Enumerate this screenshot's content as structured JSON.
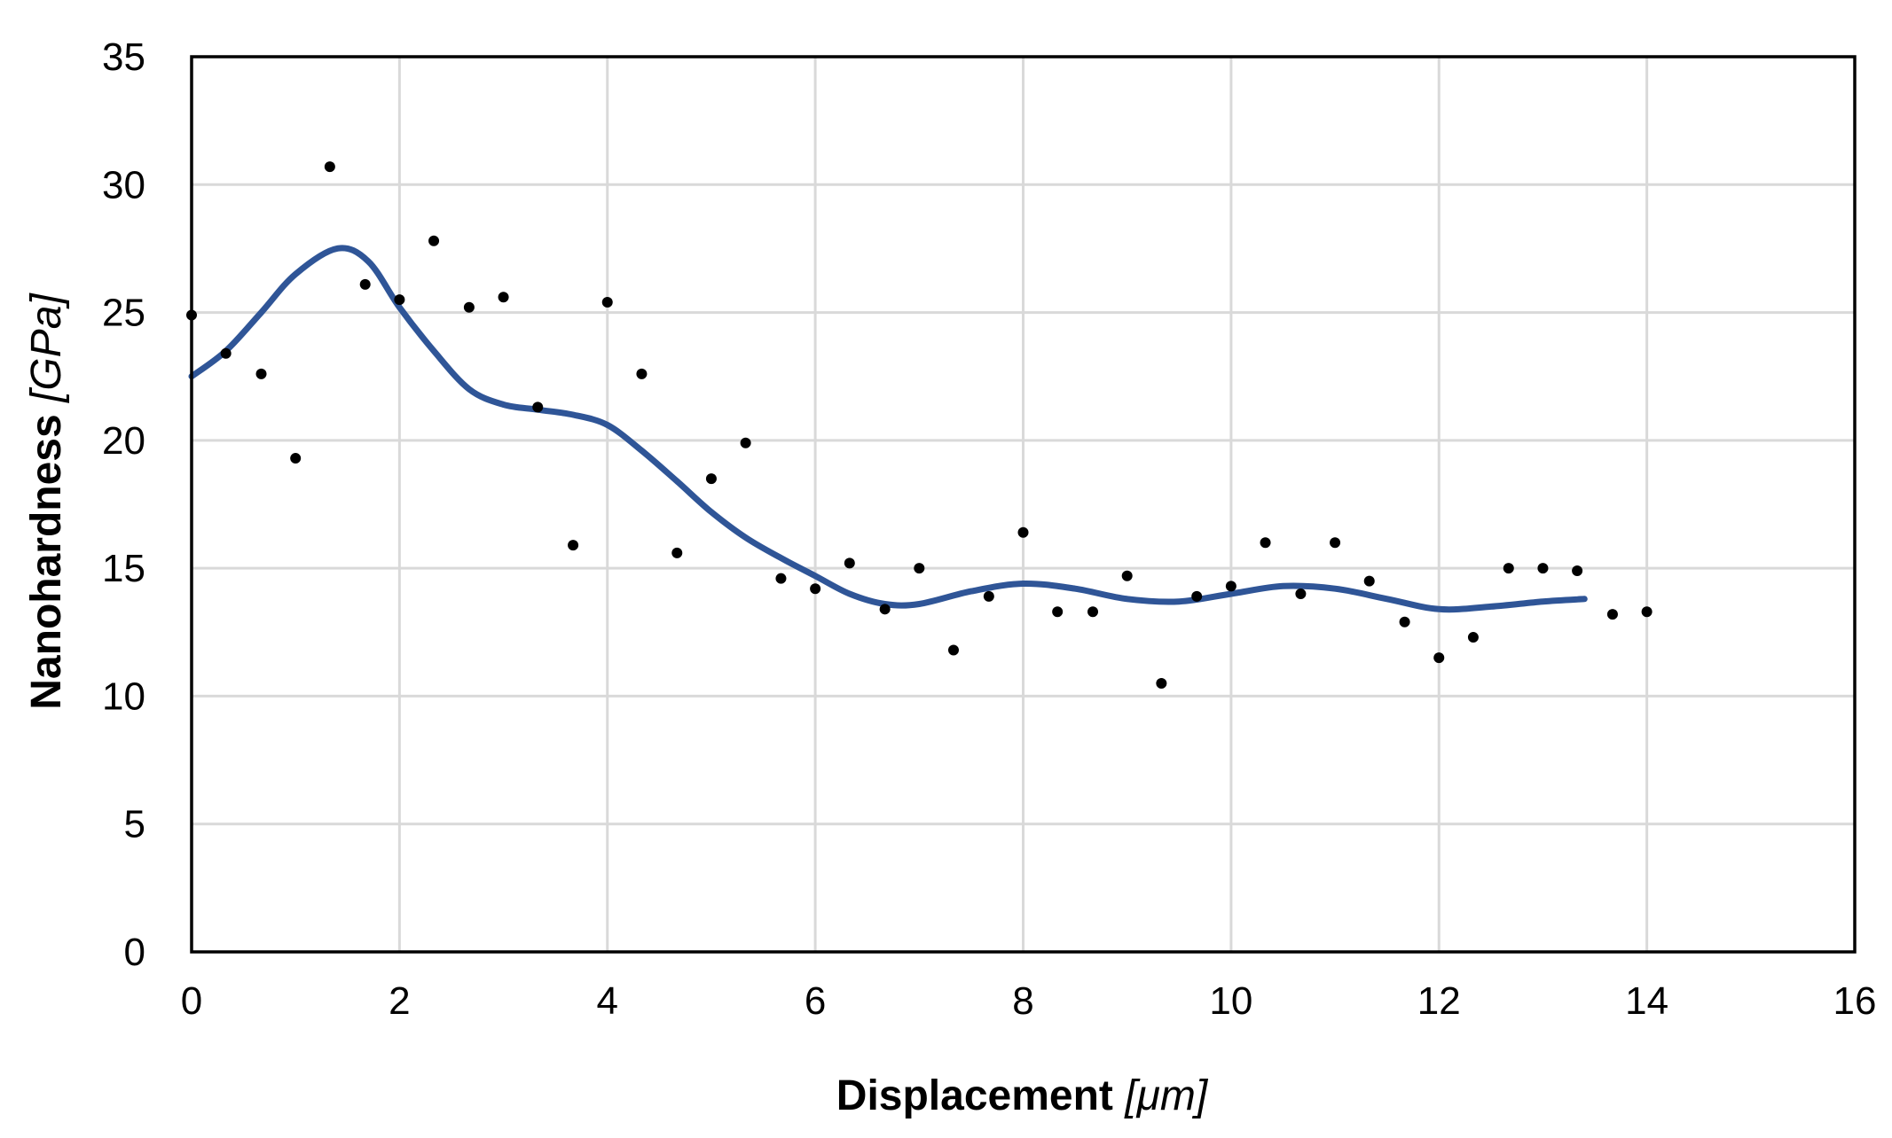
{
  "chart_data": {
    "type": "scatter",
    "xlabel": "Displacement",
    "xunit": "[μm]",
    "ylabel": "Nanohardness",
    "yunit": "[GPa]",
    "xlim": [
      0,
      16
    ],
    "ylim": [
      0,
      35
    ],
    "x_ticks": [
      0,
      2,
      4,
      6,
      8,
      10,
      12,
      14,
      16
    ],
    "y_ticks": [
      0,
      5,
      10,
      15,
      20,
      25,
      30,
      35
    ],
    "grid": true,
    "legend": "none",
    "colors": {
      "points": "#000000",
      "trend": "#2f5597",
      "grid": "#d9d9d9"
    },
    "series": [
      {
        "kind": "scatter",
        "x": [
          0,
          0.33,
          0.67,
          1.0,
          1.33,
          1.67,
          2.0,
          2.33,
          2.67,
          3.0,
          3.33,
          3.67,
          4.0,
          4.33,
          4.67,
          5.0,
          5.33,
          5.67,
          6.0,
          6.33,
          6.67,
          7.0,
          7.33,
          7.67,
          8.0,
          8.33,
          8.67,
          9.0,
          9.33,
          9.67,
          10.0,
          10.33,
          10.67,
          11.0,
          11.33,
          11.67,
          12.0,
          12.33,
          12.67,
          13.0,
          13.33,
          13.67,
          14.0
        ],
        "y": [
          24.9,
          23.4,
          22.6,
          19.3,
          30.7,
          26.1,
          25.5,
          27.8,
          25.2,
          25.6,
          21.3,
          15.9,
          25.4,
          22.6,
          15.6,
          18.5,
          19.9,
          14.6,
          14.2,
          15.2,
          13.4,
          15.0,
          11.8,
          13.9,
          16.4,
          13.3,
          13.3,
          14.7,
          10.5,
          13.9,
          14.3,
          16.0,
          14.0,
          16.0,
          14.5,
          12.9,
          11.5,
          12.3,
          15.0,
          15.0,
          14.9,
          13.2,
          13.3
        ]
      },
      {
        "kind": "trendline",
        "x": [
          0,
          0.33,
          0.67,
          1.0,
          1.4,
          1.7,
          2.0,
          2.33,
          2.67,
          3.0,
          3.33,
          3.67,
          4.0,
          4.33,
          4.67,
          5.0,
          5.33,
          5.67,
          6.0,
          6.33,
          6.67,
          7.0,
          7.5,
          8.0,
          8.5,
          9.0,
          9.5,
          10.0,
          10.5,
          11.0,
          11.5,
          12.0,
          12.5,
          13.0,
          13.4
        ],
        "y": [
          22.5,
          23.5,
          25.0,
          26.5,
          27.5,
          27.0,
          25.2,
          23.5,
          22.0,
          21.4,
          21.2,
          21.0,
          20.6,
          19.6,
          18.4,
          17.2,
          16.2,
          15.4,
          14.7,
          14.0,
          13.6,
          13.6,
          14.1,
          14.4,
          14.2,
          13.8,
          13.7,
          14.0,
          14.3,
          14.2,
          13.8,
          13.4,
          13.5,
          13.7,
          13.8
        ]
      }
    ]
  }
}
